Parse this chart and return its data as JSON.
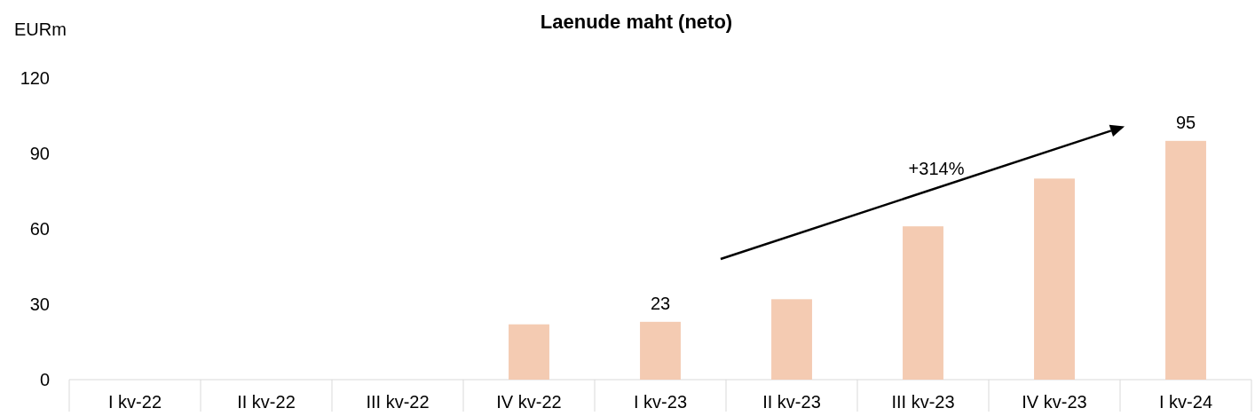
{
  "chart_data": {
    "type": "bar",
    "title": "Laenude maht (neto)",
    "ylabel": "EURm",
    "categories": [
      "I kv-22",
      "II kv-22",
      "III kv-22",
      "IV kv-22",
      "I kv-23",
      "II kv-23",
      "III kv-23",
      "IV kv-23",
      "I kv-24"
    ],
    "values": [
      0,
      0,
      0,
      22,
      23,
      32,
      61,
      80,
      95
    ],
    "value_labels": [
      null,
      null,
      null,
      null,
      "23",
      null,
      null,
      null,
      "95"
    ],
    "color": "#f4cbb2",
    "ylim": [
      0,
      120
    ],
    "yticks": [
      0,
      30,
      60,
      90,
      120
    ],
    "grid": false,
    "annotations": [
      "+314%"
    ]
  }
}
